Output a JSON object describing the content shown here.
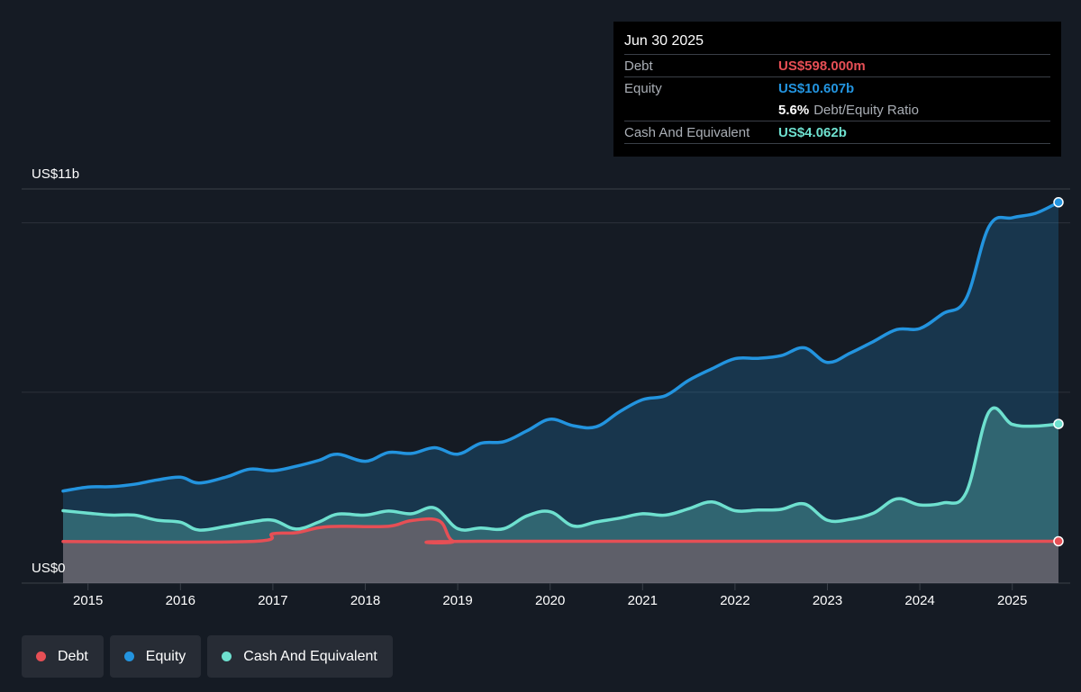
{
  "tooltip": {
    "date": "Jun 30 2025",
    "debt_label": "Debt",
    "debt_value": "US$598.000m",
    "equity_label": "Equity",
    "equity_value": "US$10.607b",
    "ratio_value": "5.6%",
    "ratio_label": "Debt/Equity Ratio",
    "cash_label": "Cash And Equivalent",
    "cash_value": "US$4.062b"
  },
  "legend": [
    {
      "label": "Debt",
      "color": "#e64f55"
    },
    {
      "label": "Equity",
      "color": "#2394df"
    },
    {
      "label": "Cash And Equivalent",
      "color": "#6ee0cf"
    }
  ],
  "colors": {
    "background": "#151b24",
    "debt": "#e64f55",
    "equity": "#2394df",
    "cash": "#6ee0cf",
    "grid": "#2c323b"
  },
  "chart_data": {
    "type": "area",
    "ylabel_top": "US$11b",
    "ylabel_bottom": "US$0",
    "ylim": [
      0,
      11
    ],
    "xlim": [
      2014.73,
      2025.5
    ],
    "x_ticks": [
      "2015",
      "2016",
      "2017",
      "2018",
      "2019",
      "2020",
      "2021",
      "2022",
      "2023",
      "2024",
      "2025"
    ],
    "grid": true,
    "series": [
      {
        "name": "Equity",
        "points": [
          [
            2014.73,
            2.08
          ],
          [
            2015.0,
            2.2
          ],
          [
            2015.25,
            2.21
          ],
          [
            2015.5,
            2.28
          ],
          [
            2015.75,
            2.41
          ],
          [
            2016.0,
            2.49
          ],
          [
            2016.2,
            2.32
          ],
          [
            2016.5,
            2.5
          ],
          [
            2016.75,
            2.73
          ],
          [
            2017.0,
            2.68
          ],
          [
            2017.25,
            2.81
          ],
          [
            2017.5,
            2.99
          ],
          [
            2017.7,
            3.17
          ],
          [
            2018.0,
            2.96
          ],
          [
            2018.25,
            3.22
          ],
          [
            2018.5,
            3.19
          ],
          [
            2018.75,
            3.36
          ],
          [
            2019.0,
            3.17
          ],
          [
            2019.25,
            3.49
          ],
          [
            2019.5,
            3.54
          ],
          [
            2019.75,
            3.86
          ],
          [
            2020.0,
            4.2
          ],
          [
            2020.25,
            4.01
          ],
          [
            2020.5,
            3.98
          ],
          [
            2020.75,
            4.42
          ],
          [
            2021.0,
            4.78
          ],
          [
            2021.25,
            4.9
          ],
          [
            2021.5,
            5.35
          ],
          [
            2021.75,
            5.69
          ],
          [
            2022.0,
            5.99
          ],
          [
            2022.25,
            6.0
          ],
          [
            2022.5,
            6.08
          ],
          [
            2022.75,
            6.31
          ],
          [
            2023.0,
            5.88
          ],
          [
            2023.25,
            6.16
          ],
          [
            2023.5,
            6.5
          ],
          [
            2023.75,
            6.85
          ],
          [
            2024.0,
            6.88
          ],
          [
            2024.25,
            7.32
          ],
          [
            2024.5,
            7.76
          ],
          [
            2024.75,
            9.9
          ],
          [
            2025.0,
            10.15
          ],
          [
            2025.25,
            10.28
          ],
          [
            2025.5,
            10.607
          ]
        ]
      },
      {
        "name": "Cash And Equivalent",
        "points": [
          [
            2014.73,
            1.5
          ],
          [
            2015.0,
            1.43
          ],
          [
            2015.25,
            1.37
          ],
          [
            2015.5,
            1.37
          ],
          [
            2015.75,
            1.22
          ],
          [
            2016.0,
            1.16
          ],
          [
            2016.2,
            0.93
          ],
          [
            2016.5,
            1.04
          ],
          [
            2016.75,
            1.16
          ],
          [
            2017.0,
            1.22
          ],
          [
            2017.25,
            0.96
          ],
          [
            2017.5,
            1.17
          ],
          [
            2017.7,
            1.4
          ],
          [
            2018.0,
            1.37
          ],
          [
            2018.25,
            1.49
          ],
          [
            2018.5,
            1.41
          ],
          [
            2018.75,
            1.58
          ],
          [
            2019.0,
            0.97
          ],
          [
            2019.25,
            0.99
          ],
          [
            2019.5,
            0.97
          ],
          [
            2019.75,
            1.35
          ],
          [
            2020.0,
            1.47
          ],
          [
            2020.25,
            1.05
          ],
          [
            2020.5,
            1.17
          ],
          [
            2020.75,
            1.28
          ],
          [
            2021.0,
            1.41
          ],
          [
            2021.25,
            1.37
          ],
          [
            2021.5,
            1.56
          ],
          [
            2021.75,
            1.76
          ],
          [
            2022.0,
            1.5
          ],
          [
            2022.25,
            1.52
          ],
          [
            2022.5,
            1.54
          ],
          [
            2022.75,
            1.7
          ],
          [
            2023.0,
            1.22
          ],
          [
            2023.25,
            1.25
          ],
          [
            2023.5,
            1.43
          ],
          [
            2023.75,
            1.85
          ],
          [
            2024.0,
            1.67
          ],
          [
            2024.25,
            1.73
          ],
          [
            2024.5,
            2.03
          ],
          [
            2024.75,
            4.43
          ],
          [
            2025.0,
            4.05
          ],
          [
            2025.25,
            4.0
          ],
          [
            2025.5,
            4.062
          ]
        ]
      },
      {
        "name": "Debt",
        "points": [
          [
            2014.73,
            0.59
          ],
          [
            2016.75,
            0.59
          ],
          [
            2017.0,
            0.82
          ],
          [
            2017.25,
            0.85
          ],
          [
            2017.5,
            1.0
          ],
          [
            2017.75,
            1.04
          ],
          [
            2018.25,
            1.04
          ],
          [
            2018.5,
            1.21
          ],
          [
            2018.8,
            1.2
          ],
          [
            2018.95,
            0.6
          ],
          [
            2019.25,
            0.598
          ],
          [
            2025.5,
            0.598
          ]
        ]
      }
    ]
  }
}
